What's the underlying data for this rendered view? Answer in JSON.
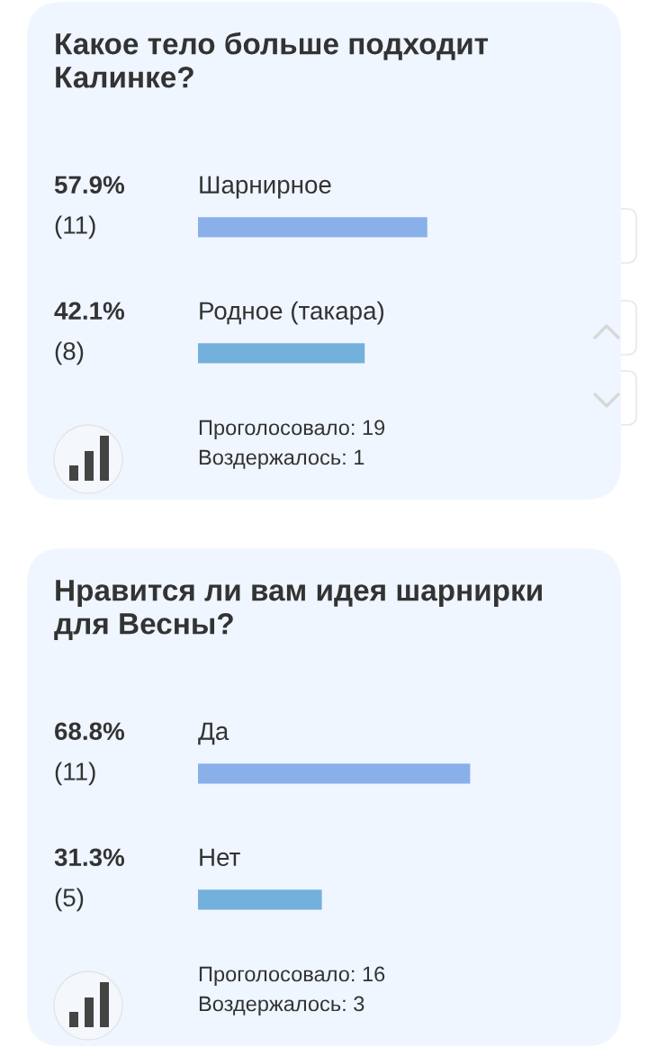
{
  "chart_data": [
    {
      "type": "bar",
      "orientation": "horizontal",
      "title": "Какое тело больше подходит Калинке?",
      "categories": [
        "Шарнирное",
        "Родное (такара)"
      ],
      "values": [
        57.9,
        42.1
      ],
      "value_labels": [
        "57.9%\n(11)",
        "42.1%\n(8)"
      ],
      "colors": [
        "#8ab0ea",
        "#74b0dc"
      ],
      "tick_labels": false,
      "annotations": [
        "Проголосовало: 19",
        "Воздержалось: 1"
      ]
    },
    {
      "type": "bar",
      "orientation": "horizontal",
      "title": "Нравится ли вам идея шарнирки для Весны?",
      "categories": [
        "Да",
        "Нет"
      ],
      "values": [
        68.8,
        31.3
      ],
      "value_labels": [
        "68.8%\n(11)",
        "31.3%\n(5)"
      ],
      "colors": [
        "#8ab0ea",
        "#74b0dc"
      ],
      "tick_labels": false,
      "annotations": [
        "Проголосовало: 16",
        "Воздержалось: 3"
      ]
    }
  ]
}
